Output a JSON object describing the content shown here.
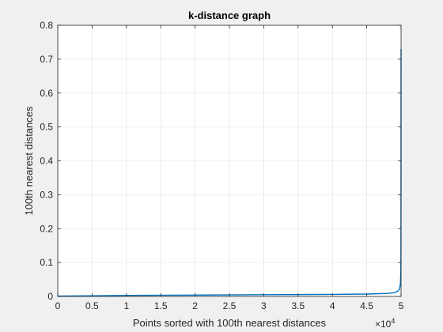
{
  "chart_data": {
    "type": "line",
    "title": "k-distance graph",
    "xlabel": "Points sorted with 100th nearest distances",
    "ylabel": "100th nearest distances",
    "xlim": [
      0,
      50000
    ],
    "ylim": [
      0,
      0.8
    ],
    "x_exponent_label": "×10",
    "x_exponent_power": "4",
    "grid": true,
    "xticks": [
      0,
      5000,
      10000,
      15000,
      20000,
      25000,
      30000,
      35000,
      40000,
      45000,
      50000
    ],
    "xtick_labels": [
      "0",
      "0.5",
      "1",
      "1.5",
      "2",
      "2.5",
      "3",
      "3.5",
      "4",
      "4.5",
      "5"
    ],
    "yticks": [
      0,
      0.1,
      0.2,
      0.3,
      0.4,
      0.5,
      0.6,
      0.7,
      0.8
    ],
    "ytick_labels": [
      "0",
      "0.1",
      "0.2",
      "0.3",
      "0.4",
      "0.5",
      "0.6",
      "0.7",
      "0.8"
    ],
    "series": [
      {
        "color": "#0072bd",
        "x": [
          0,
          5000,
          10000,
          20000,
          30000,
          40000,
          45000,
          48000,
          49000,
          49500,
          49700,
          49800,
          49850,
          49900,
          49930,
          49960,
          49980,
          49990,
          50000
        ],
        "y": [
          0.001,
          0.002,
          0.003,
          0.004,
          0.005,
          0.006,
          0.007,
          0.009,
          0.011,
          0.015,
          0.02,
          0.025,
          0.03,
          0.04,
          0.05,
          0.07,
          0.1,
          0.3,
          0.73
        ]
      }
    ]
  }
}
